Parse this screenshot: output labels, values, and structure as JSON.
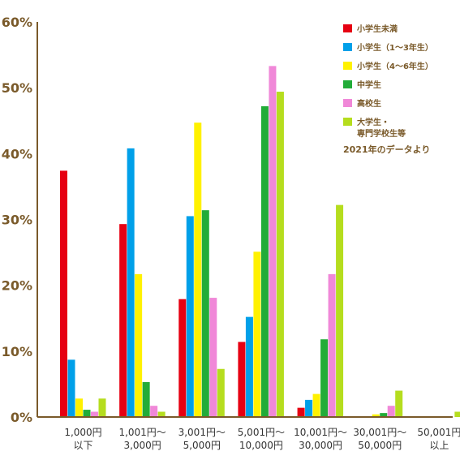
{
  "chart_data": {
    "type": "bar",
    "categories": [
      [
        "1,000円",
        "以下"
      ],
      [
        "1,001円～",
        "3,000円"
      ],
      [
        "3,001円～",
        "5,000円"
      ],
      [
        "5,001円～",
        "10,000円"
      ],
      [
        "10,001円～",
        "30,000円"
      ],
      [
        "30,001円～",
        "50,000円"
      ],
      [
        "50,001円",
        "以上"
      ]
    ],
    "y_ticks": [
      "0%",
      "10%",
      "20%",
      "30%",
      "40%",
      "50%",
      "60%"
    ],
    "ylim": [
      0,
      60
    ],
    "unit": "%",
    "grid": false,
    "legend_position": "top-right",
    "annotation": "2021年のデータより",
    "series": [
      {
        "name": "小学生未満",
        "color": "#e60012",
        "values": [
          37.4,
          29.3,
          17.9,
          11.4,
          1.4,
          0,
          0
        ]
      },
      {
        "name": "小学生（1～3年生）",
        "color": "#00a0e9",
        "values": [
          8.7,
          40.8,
          30.5,
          15.2,
          2.6,
          0,
          0
        ]
      },
      {
        "name": "小学生（4～6年生）",
        "color": "#fff100",
        "values": [
          2.8,
          21.7,
          44.7,
          25.1,
          3.5,
          0.4,
          0
        ]
      },
      {
        "name": "中学生",
        "color": "#22ac38",
        "values": [
          1.1,
          5.3,
          31.4,
          47.2,
          11.8,
          0.6,
          0
        ]
      },
      {
        "name": "高校生",
        "color": "#f088d8",
        "values": [
          0.8,
          1.7,
          18.1,
          53.3,
          21.7,
          1.7,
          0
        ]
      },
      {
        "name": "大学生・\n専門学校生等",
        "color": "#b5dd1e",
        "values": [
          2.8,
          0.8,
          7.3,
          49.4,
          32.2,
          4.0,
          0.8
        ]
      }
    ]
  }
}
